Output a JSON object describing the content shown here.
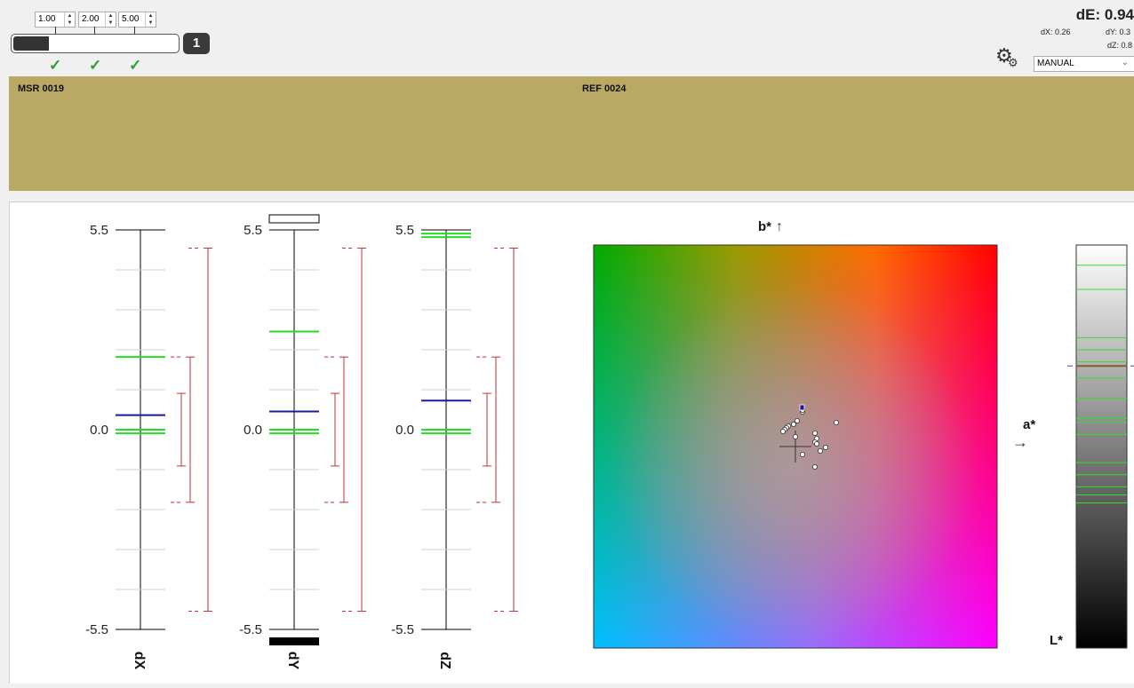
{
  "thresholds": [
    {
      "value": "1.00",
      "checked": true
    },
    {
      "value": "2.00",
      "checked": true
    },
    {
      "value": "5.00",
      "checked": true
    }
  ],
  "progress": {
    "fraction": 0.22,
    "count": "1"
  },
  "check_icon": "checkmark-icon",
  "summary": {
    "dE": "dE: 0.94",
    "dX": "dX: 0.26",
    "dY": "dY: 0.3",
    "dZ": "dZ: 0.8"
  },
  "settings_icon": "gears-icon",
  "mode": {
    "selected": "MANUAL"
  },
  "swatch": {
    "color": "#baa965",
    "msr_label": "MSR 0019",
    "ref_label": "REF 0024"
  },
  "axis_ticks": {
    "top": "5.5",
    "mid": "0.0",
    "bottom": "-5.5"
  },
  "delta_charts": [
    {
      "name": "dX",
      "blue": 0.4,
      "green": [
        2.0,
        0.0,
        -0.1
      ]
    },
    {
      "name": "dY",
      "blue": 0.5,
      "green": [
        2.7,
        0.0,
        -0.1
      ],
      "over_top": true,
      "under_bottom": true
    },
    {
      "name": "dZ",
      "blue": 0.8,
      "green": [
        5.4,
        5.3,
        0.0,
        -0.1
      ]
    }
  ],
  "tolerance_brackets": [
    [
      -1.0,
      1.0
    ],
    [
      -2.0,
      2.0
    ],
    [
      -5.0,
      5.0
    ]
  ],
  "ab_plot": {
    "b_label": "b*",
    "a_label": "a*",
    "points": [
      [
        -0.1,
        1.7
      ],
      [
        -0.1,
        1.8
      ],
      [
        -0.9,
        0.9
      ],
      [
        -1.0,
        0.8
      ],
      [
        -1.1,
        0.7
      ],
      [
        -1.2,
        0.6
      ],
      [
        -0.6,
        1.0
      ],
      [
        -0.4,
        1.2
      ],
      [
        -0.5,
        0.3
      ],
      [
        0.6,
        0.5
      ],
      [
        0.7,
        0.2
      ],
      [
        0.6,
        0.0
      ],
      [
        0.7,
        -0.1
      ],
      [
        1.2,
        -0.3
      ],
      [
        0.9,
        -0.5
      ],
      [
        1.8,
        1.1
      ],
      [
        -0.1,
        -0.7
      ],
      [
        0.6,
        -1.4
      ]
    ],
    "target": [
      -0.1,
      1.85
    ]
  },
  "lightness_bar": {
    "label": "L*",
    "green_lines": [
      0.05,
      0.11,
      0.23,
      0.26,
      0.29,
      0.33,
      0.38,
      0.43,
      0.44,
      0.47,
      0.54,
      0.57,
      0.6,
      0.62,
      0.64
    ],
    "brown_line": 0.3
  }
}
